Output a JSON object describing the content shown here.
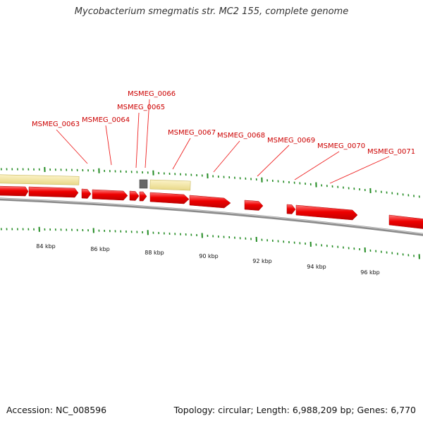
{
  "title": "Mycobacterium smegmatis str. MC2 155, complete genome",
  "footer": {
    "accession": "Accession: NC_008596",
    "summary": "Topology: circular; Length: 6,988,209 bp; Genes: 6,770"
  },
  "colors": {
    "cds": "#ee0000",
    "cds_highlight": "#ff8080",
    "cds_outline": "#aa0000",
    "rna_gene": "#f5e6a0",
    "misc_feature": "#666666",
    "backbone": "#888888",
    "tick": "#228b22",
    "label": "#cc0000"
  },
  "tick_labels": [
    "84 kbp",
    "86 kbp",
    "88 kbp",
    "90 kbp",
    "92 kbp",
    "94 kbp",
    "96 kbp"
  ],
  "gene_labels": [
    "MSMEG_0063",
    "MSMEG_0064",
    "MSMEG_0065",
    "MSMEG_0066",
    "MSMEG_0067",
    "MSMEG_0068",
    "MSMEG_0069",
    "MSMEG_0070",
    "MSMEG_0071"
  ]
}
